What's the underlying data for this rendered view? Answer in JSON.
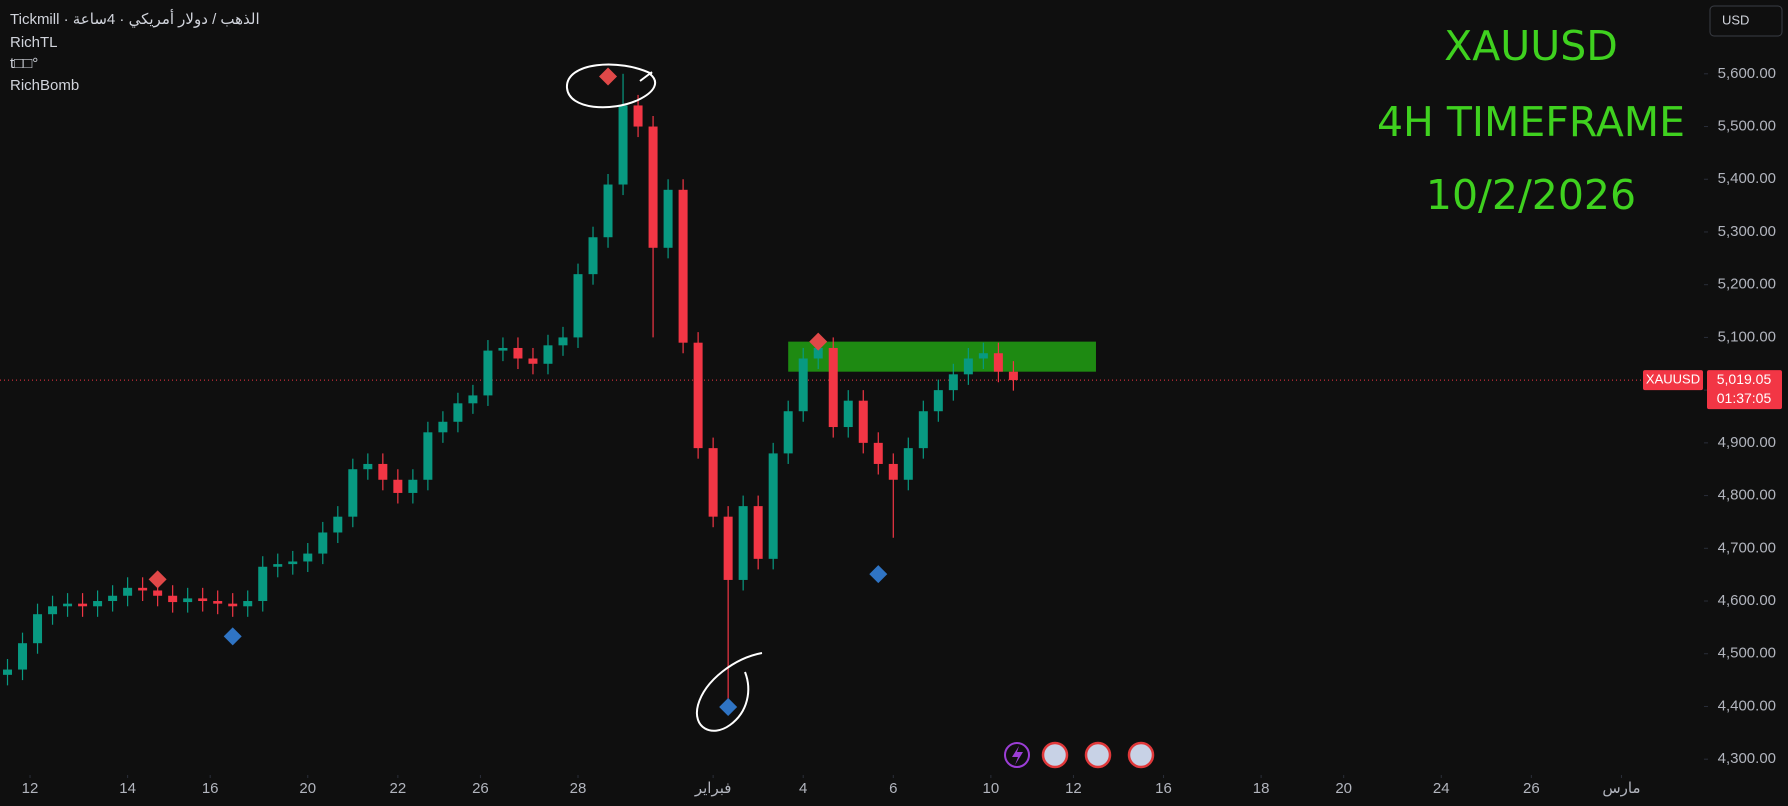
{
  "chart_data": {
    "type": "candlestick",
    "header": [
      "Tickmill · الذهب / دولار أمريكي · 4ساعة",
      "RichTL",
      "t□□°",
      "RichBomb"
    ],
    "annotations": [
      "XAUUSD",
      "4H TIMEFRAME",
      "10/2/2026"
    ],
    "annotation_color": "#3fd11f",
    "currency": "USD",
    "up_color": "#089981",
    "down_color": "#f23645",
    "x": [
      0,
      2,
      4,
      6,
      8,
      10,
      12,
      14,
      16,
      18,
      20,
      22,
      24,
      26,
      28,
      30,
      32,
      34,
      36,
      38,
      40,
      42,
      44,
      46,
      48,
      50,
      52,
      54,
      56,
      58,
      60,
      62,
      64,
      66,
      68,
      70,
      72,
      74,
      76,
      78,
      80,
      82,
      84,
      86,
      88,
      90,
      92,
      94,
      96,
      98,
      100,
      102,
      104,
      106,
      108,
      110,
      112,
      114,
      116,
      118,
      120,
      122,
      124,
      126,
      128,
      130,
      132,
      134
    ],
    "open": [
      4460,
      4470,
      4520,
      4575,
      4590,
      4595,
      4590,
      4600,
      4610,
      4625,
      4620,
      4610,
      4598,
      4605,
      4600,
      4595,
      4590,
      4600,
      4665,
      4670,
      4675,
      4690,
      4730,
      4760,
      4850,
      4860,
      4830,
      4805,
      4830,
      4920,
      4940,
      4975,
      4990,
      5075,
      5080,
      5060,
      5050,
      5085,
      5100,
      5220,
      5290,
      5390,
      5540,
      5500,
      5270,
      5380,
      5090,
      4890,
      4760,
      4640,
      4780,
      4680,
      4880,
      4960,
      5060,
      5080,
      4930,
      4980,
      4900,
      4860,
      4830,
      4890,
      4960,
      5000,
      5030,
      5060,
      5070,
      5035
    ],
    "high": [
      4490,
      4540,
      4595,
      4610,
      4615,
      4615,
      4620,
      4630,
      4645,
      4645,
      4640,
      4630,
      4625,
      4625,
      4620,
      4615,
      4620,
      4685,
      4690,
      4695,
      4710,
      4750,
      4780,
      4870,
      4880,
      4880,
      4850,
      4850,
      4940,
      4960,
      4995,
      5010,
      5095,
      5100,
      5100,
      5080,
      5105,
      5120,
      5240,
      5310,
      5410,
      5600,
      5560,
      5520,
      5400,
      5400,
      5110,
      4910,
      4780,
      4800,
      4800,
      4900,
      4980,
      5080,
      5100,
      5100,
      5000,
      5000,
      4920,
      4880,
      4910,
      4980,
      5020,
      5050,
      5080,
      5090,
      5090,
      5055
    ],
    "low": [
      4440,
      4450,
      4500,
      4555,
      4570,
      4570,
      4570,
      4580,
      4590,
      4600,
      4590,
      4578,
      4578,
      4580,
      4575,
      4570,
      4570,
      4580,
      4645,
      4650,
      4655,
      4670,
      4710,
      4740,
      4830,
      4810,
      4785,
      4785,
      4810,
      4900,
      4920,
      4955,
      4970,
      5055,
      5040,
      5030,
      5030,
      5065,
      5080,
      5200,
      5270,
      5370,
      5480,
      5100,
      5250,
      5070,
      4870,
      4740,
      4400,
      4620,
      4660,
      4660,
      4860,
      4940,
      5040,
      4910,
      4910,
      4880,
      4840,
      4720,
      4810,
      4870,
      4940,
      4980,
      5010,
      5040,
      5015,
      4999
    ],
    "close": [
      4470,
      4520,
      4575,
      4590,
      4595,
      4590,
      4600,
      4610,
      4625,
      4620,
      4610,
      4598,
      4605,
      4600,
      4595,
      4590,
      4600,
      4665,
      4670,
      4675,
      4690,
      4730,
      4760,
      4850,
      4860,
      4830,
      4805,
      4830,
      4920,
      4940,
      4975,
      4990,
      5075,
      5080,
      5060,
      5050,
      5085,
      5100,
      5220,
      5290,
      5390,
      5540,
      5500,
      5270,
      5380,
      5090,
      4890,
      4760,
      4640,
      4780,
      4680,
      4880,
      4960,
      5060,
      5080,
      4930,
      4980,
      4900,
      4860,
      4830,
      4890,
      4960,
      5000,
      5030,
      5060,
      5070,
      5035,
      5019.05
    ],
    "signals": [
      {
        "color": "#e04848",
        "x": [
          20,
          80,
          108
        ],
        "values": [
          4641,
          5595,
          5092
        ]
      },
      {
        "color": "#2f74c4",
        "x": [
          30,
          96,
          116
        ],
        "values": [
          4533,
          4399,
          4651
        ]
      }
    ],
    "zone": {
      "color": "#1e8a12",
      "x": [
        104,
        145
      ],
      "y": [
        5035,
        5092
      ]
    },
    "symbol_tag": "XAUUSD",
    "last_price": {
      "value": 5019.05,
      "label": "5,019.05"
    },
    "countdown": "01:37:05",
    "xlim": [
      -1,
      226
    ],
    "ylim": [
      4270,
      5740
    ],
    "xticks": [
      {
        "value": 3,
        "label": "12"
      },
      {
        "value": 16,
        "label": "14"
      },
      {
        "value": 27,
        "label": "16"
      },
      {
        "value": 40,
        "label": "20"
      },
      {
        "value": 52,
        "label": "22"
      },
      {
        "value": 63,
        "label": "26"
      },
      {
        "value": 76,
        "label": "28"
      },
      {
        "value": 94,
        "label": "فبراير"
      },
      {
        "value": 106,
        "label": "4"
      },
      {
        "value": 118,
        "label": "6"
      },
      {
        "value": 131,
        "label": "10"
      },
      {
        "value": 142,
        "label": "12"
      },
      {
        "value": 154,
        "label": "16"
      },
      {
        "value": 167,
        "label": "18"
      },
      {
        "value": 178,
        "label": "20"
      },
      {
        "value": 191,
        "label": "24"
      },
      {
        "value": 203,
        "label": "26"
      },
      {
        "value": 215,
        "label": "مارس"
      }
    ],
    "yticks": [
      {
        "value": 4300,
        "label": "4,300.00"
      },
      {
        "value": 4400,
        "label": "4,400.00"
      },
      {
        "value": 4500,
        "label": "4,500.00"
      },
      {
        "value": 4600,
        "label": "4,600.00"
      },
      {
        "value": 4700,
        "label": "4,700.00"
      },
      {
        "value": 4800,
        "label": "4,800.00"
      },
      {
        "value": 4900,
        "label": "4,900.00"
      },
      {
        "value": 5000,
        "label": "5,000.00"
      },
      {
        "value": 5100,
        "label": "5,100.00"
      },
      {
        "value": 5200,
        "label": "5,200.00"
      },
      {
        "value": 5300,
        "label": "5,300.00"
      },
      {
        "value": 5400,
        "label": "5,400.00"
      },
      {
        "value": 5500,
        "label": "5,500.00"
      },
      {
        "value": 5600,
        "label": "5,600.00"
      }
    ]
  }
}
